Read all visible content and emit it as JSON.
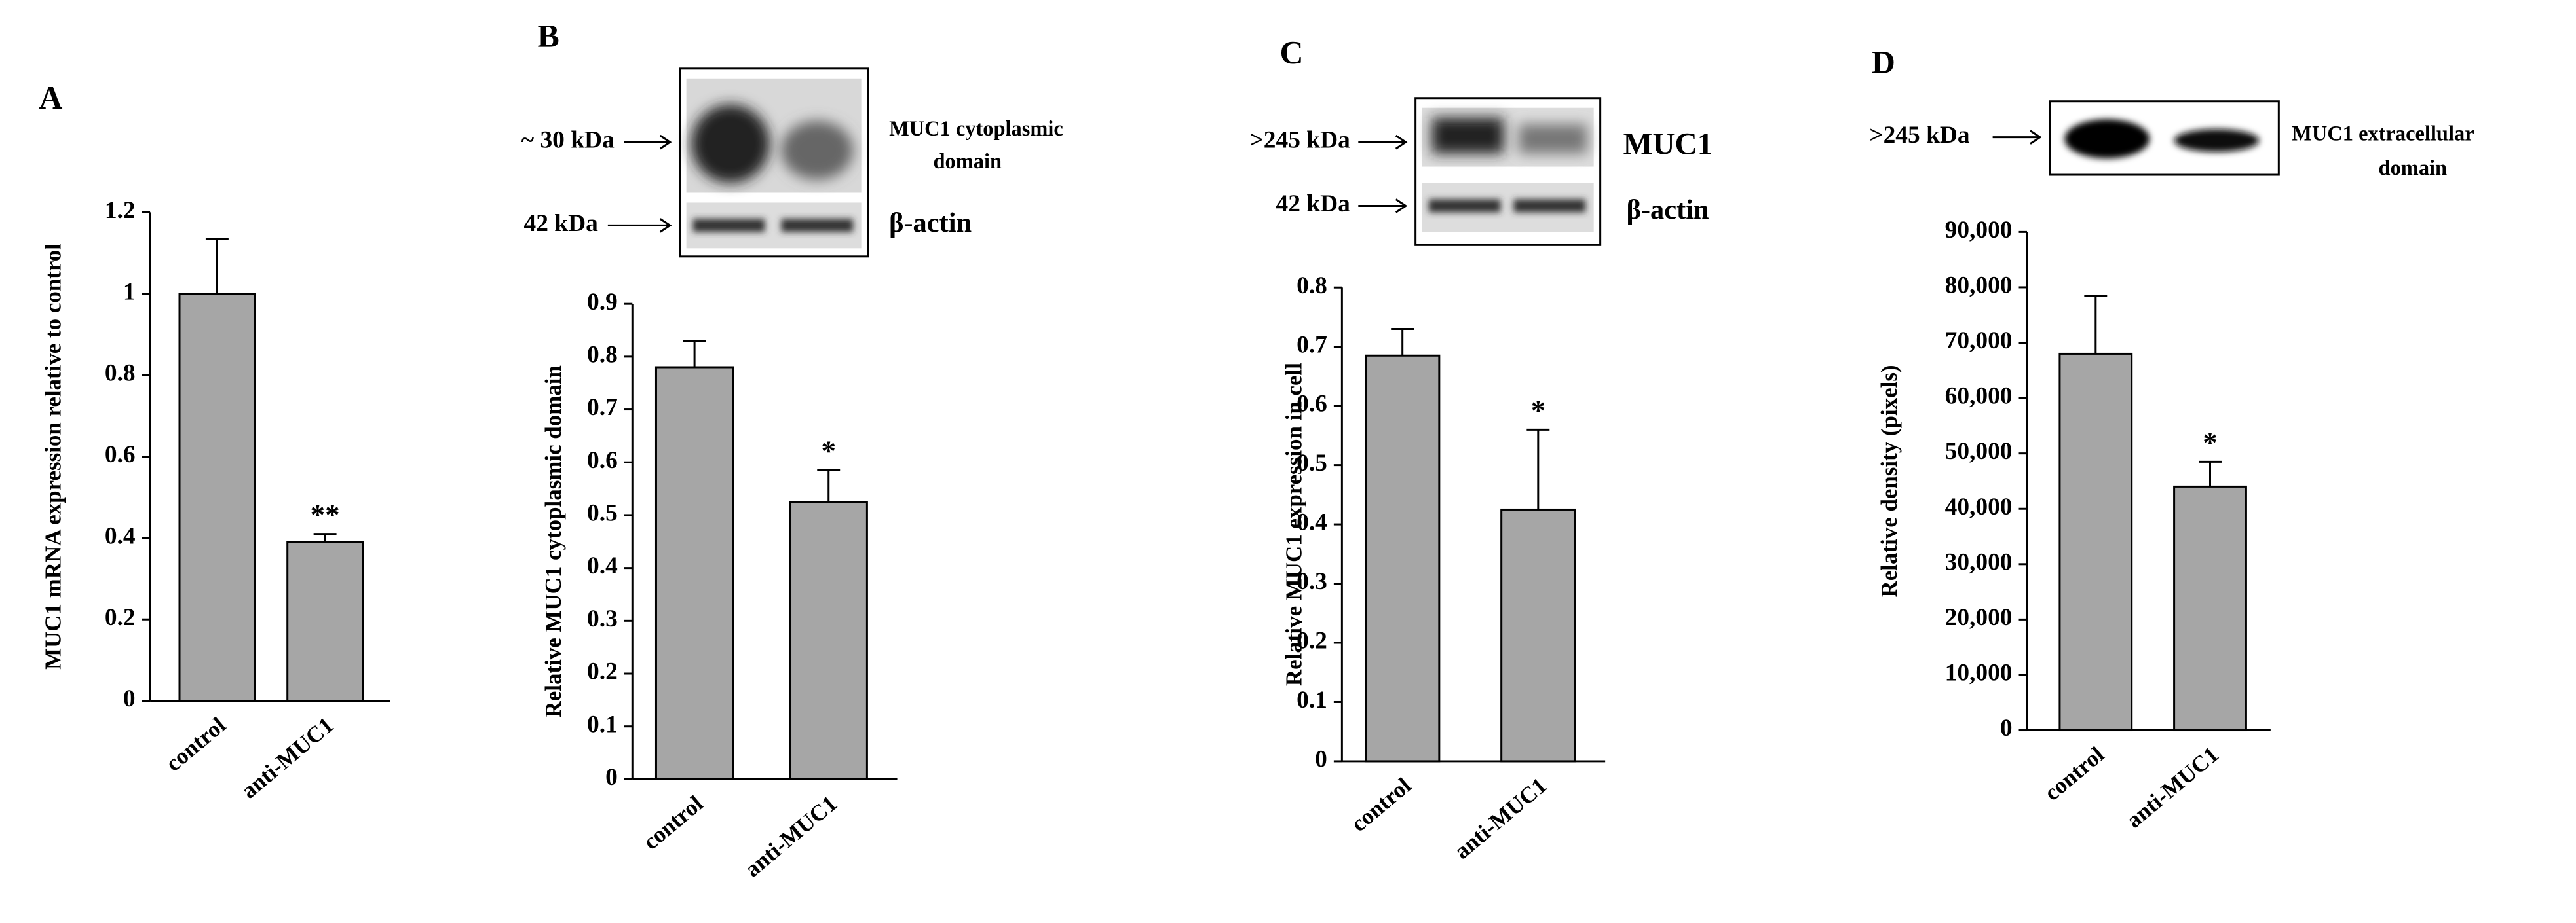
{
  "chart_data": [
    {
      "type": "bar",
      "panel": "A",
      "ylabel": "MUC1  mRNA  expression relative  to control",
      "categories": [
        "control",
        "anti-MUC1"
      ],
      "values": [
        1.0,
        0.39
      ],
      "errors": [
        0.135,
        0.02
      ],
      "significance": [
        null,
        "**"
      ],
      "color": "#a6a6a6",
      "ylim": [
        0,
        1.2
      ],
      "yticks": [
        0,
        0.2,
        0.4,
        0.6,
        0.8,
        1,
        1.2
      ],
      "grid": false
    },
    {
      "type": "bar",
      "panel": "B",
      "ylabel": "Relative MUC1  cytoplasmic  domain",
      "categories": [
        "control",
        "anti-MUC1"
      ],
      "values": [
        0.78,
        0.525
      ],
      "errors": [
        0.05,
        0.06
      ],
      "significance": [
        null,
        "*"
      ],
      "color": "#a6a6a6",
      "ylim": [
        0,
        0.9
      ],
      "yticks": [
        0,
        0.1,
        0.2,
        0.3,
        0.4,
        0.5,
        0.6,
        0.7,
        0.8,
        0.9
      ],
      "grid": false,
      "blot_labels": [
        "~ 30 kDa",
        "42 kDa",
        "MUC1  cytoplasmic",
        "domain",
        "β-actin"
      ]
    },
    {
      "type": "bar",
      "panel": "C",
      "ylabel": "Relative MUC1  expression in cell",
      "categories": [
        "control",
        "anti-MUC1"
      ],
      "values": [
        0.685,
        0.425
      ],
      "errors": [
        0.045,
        0.135
      ],
      "significance": [
        null,
        "*"
      ],
      "color": "#a6a6a6",
      "ylim": [
        0,
        0.8
      ],
      "yticks": [
        0,
        0.1,
        0.2,
        0.3,
        0.4,
        0.5,
        0.6,
        0.7,
        0.8
      ],
      "grid": false,
      "blot_labels": [
        ">245 kDa",
        "42 kDa",
        "MUC1",
        "β-actin"
      ]
    },
    {
      "type": "bar",
      "panel": "D",
      "ylabel": "Relative density (pixels)",
      "categories": [
        "control",
        "anti-MUC1"
      ],
      "values": [
        68000,
        44000
      ],
      "errors": [
        10500,
        4500
      ],
      "significance": [
        null,
        "*"
      ],
      "color": "#a6a6a6",
      "ylim": [
        0,
        90000
      ],
      "yticks": [
        0,
        {
          "value": 10000,
          "label": "10,000"
        },
        {
          "value": 20000,
          "label": "20,000"
        },
        {
          "value": 30000,
          "label": "30,000"
        },
        {
          "value": 40000,
          "label": "40,000"
        },
        {
          "value": 50000,
          "label": "50,000"
        },
        {
          "value": 60000,
          "label": "60,000"
        },
        {
          "value": 70000,
          "label": "70,000"
        },
        {
          "value": 80000,
          "label": "80,000"
        },
        {
          "value": 90000,
          "label": "90,000"
        }
      ],
      "grid": false,
      "blot_labels": [
        ">245 kDa",
        "MUC1  extracellular",
        "domain"
      ]
    }
  ]
}
